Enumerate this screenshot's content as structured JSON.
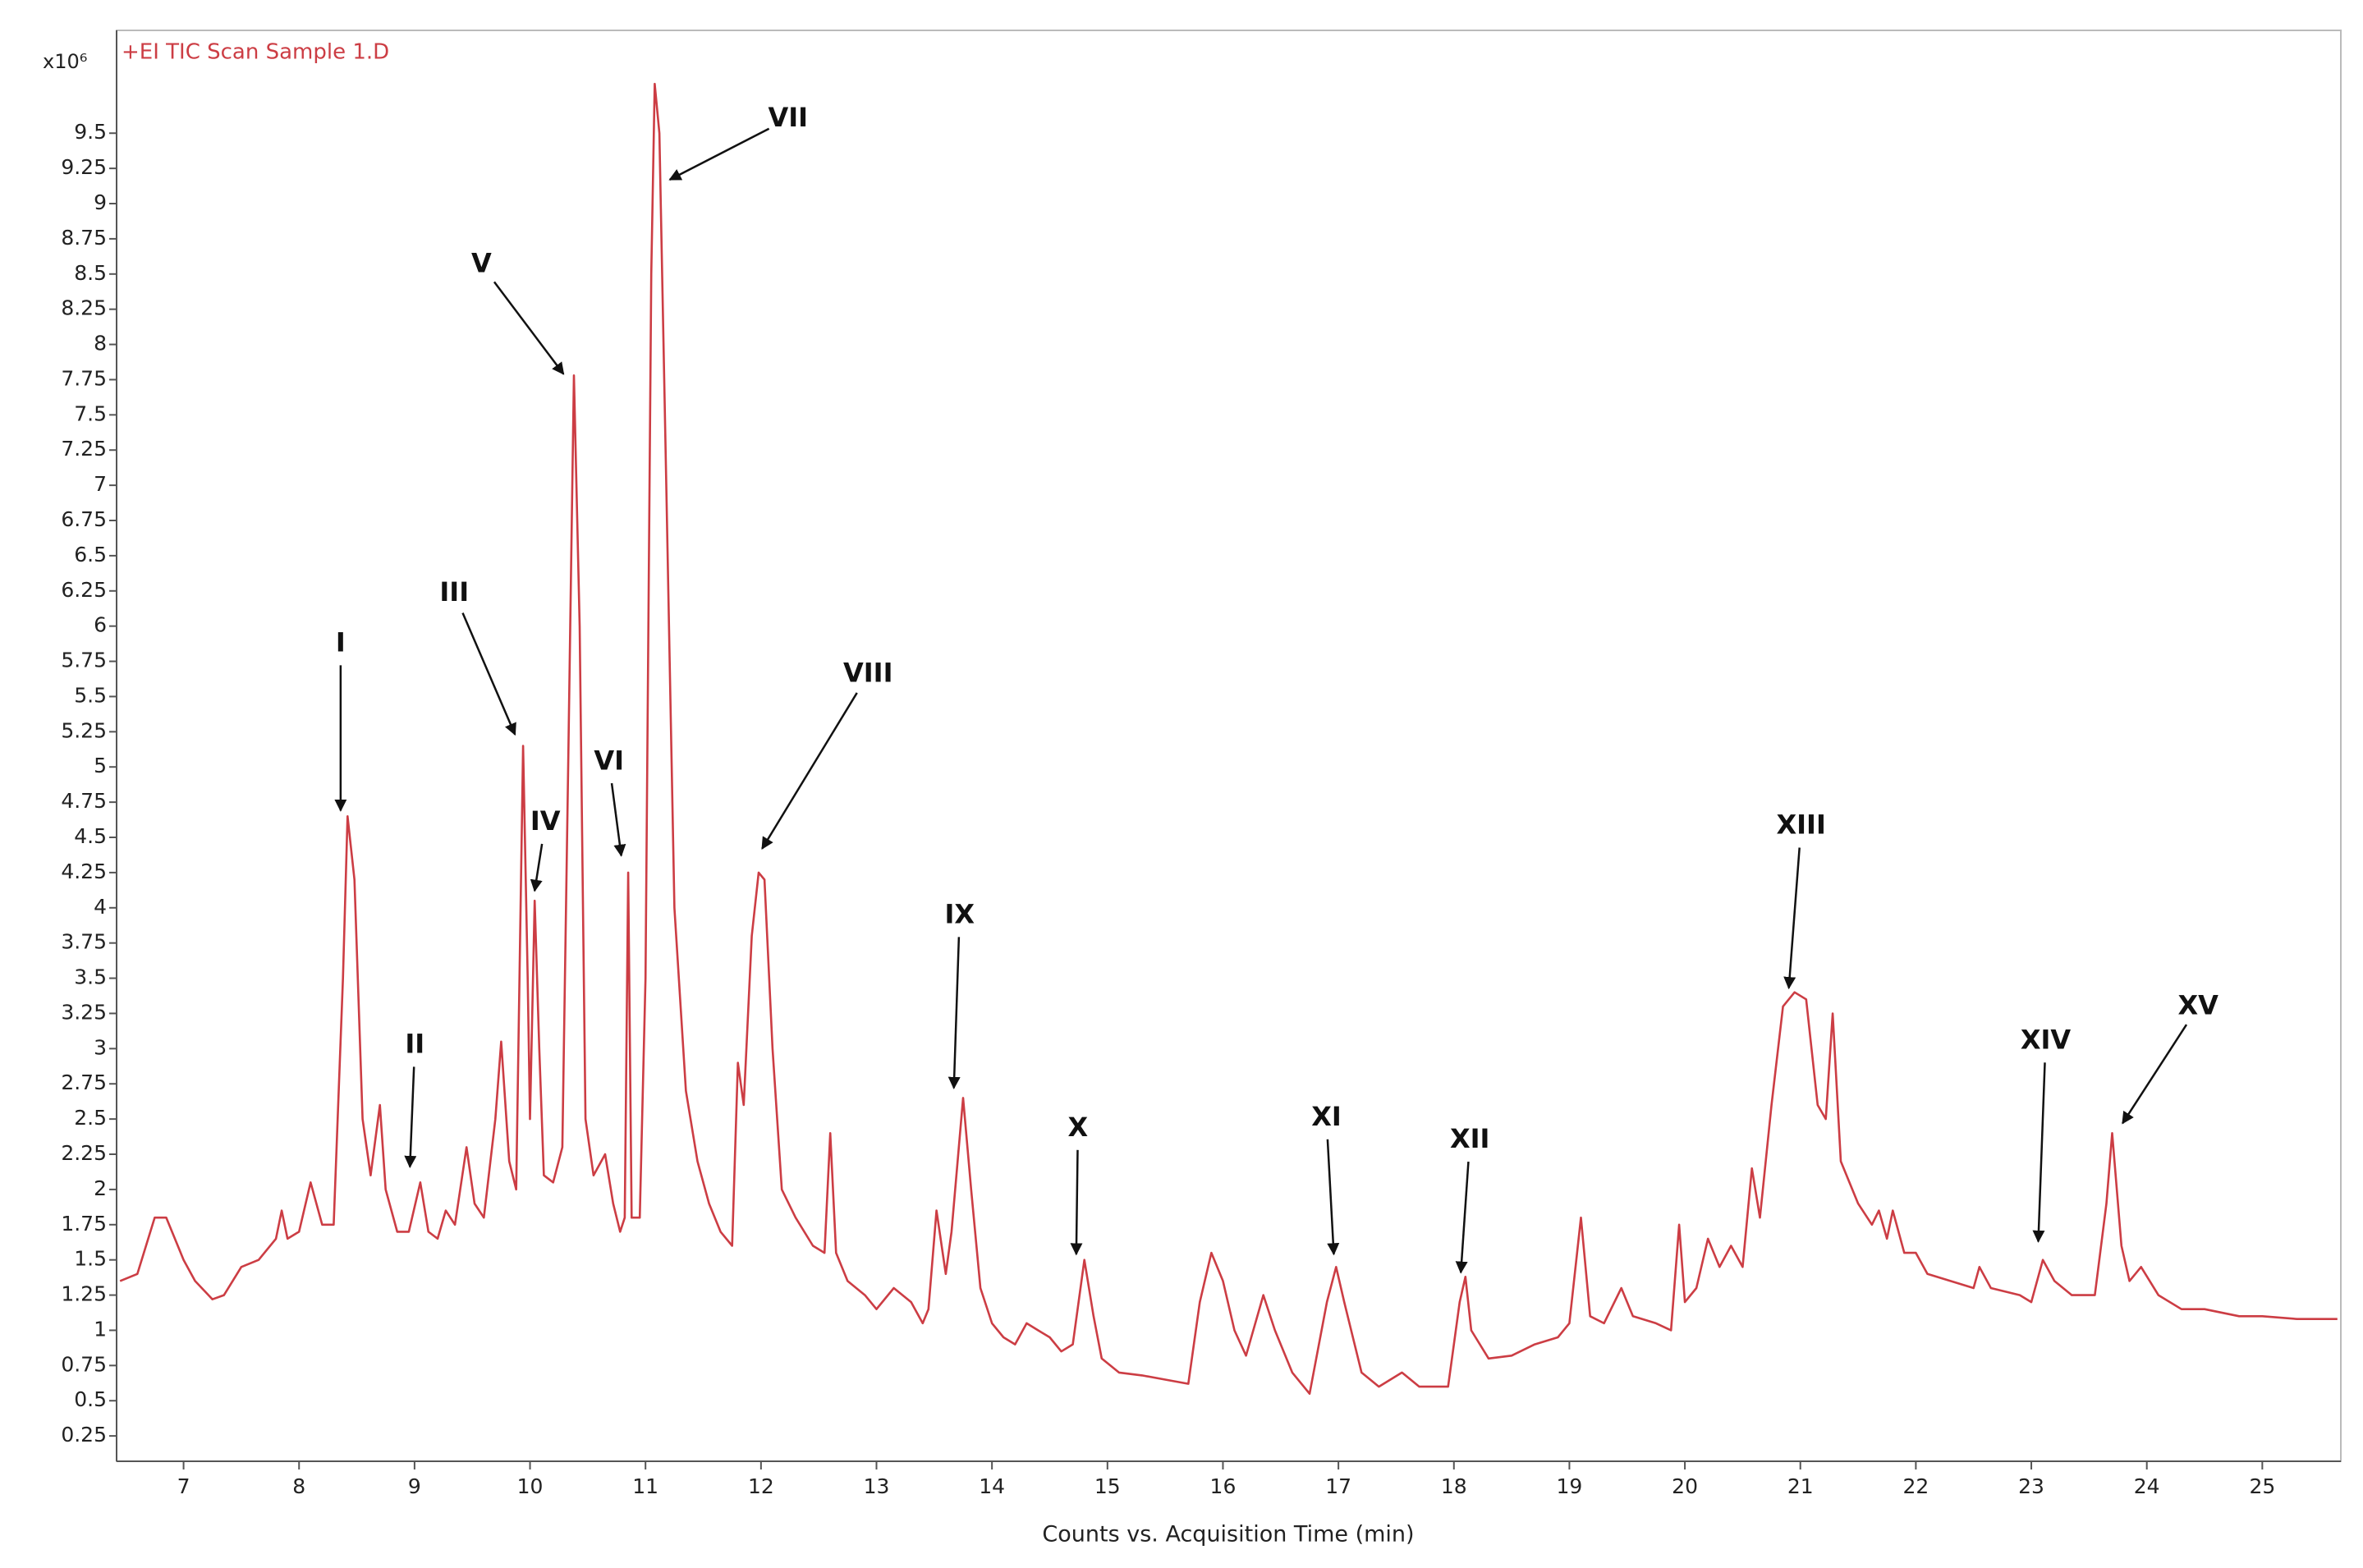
{
  "chart_data": {
    "type": "line",
    "title": "+EI TIC Scan Sample 1.D",
    "y_multiplier": "x10⁶",
    "x_label": "Counts vs. Acquisition Time (min)",
    "xlim": [
      6.42,
      25.68
    ],
    "ylim": [
      0.07,
      10.23
    ],
    "xticks": [
      7,
      8,
      9,
      10,
      11,
      12,
      13,
      14,
      15,
      16,
      17,
      18,
      19,
      20,
      21,
      22,
      23,
      24,
      25
    ],
    "yticks": [
      0.25,
      0.5,
      0.75,
      1,
      1.25,
      1.5,
      1.75,
      2,
      2.25,
      2.5,
      2.75,
      3,
      3.25,
      3.5,
      3.75,
      4,
      4.25,
      4.5,
      4.75,
      5,
      5.25,
      5.5,
      5.75,
      6,
      6.25,
      6.5,
      6.75,
      7,
      7.25,
      7.5,
      7.75,
      8,
      8.25,
      8.5,
      8.75,
      9,
      9.25,
      9.5
    ],
    "series": [
      {
        "color": "#cc3d44",
        "x": [
          6.45,
          6.6,
          6.75,
          6.85,
          7.0,
          7.1,
          7.25,
          7.35,
          7.5,
          7.65,
          7.8,
          7.85,
          7.9,
          8.0,
          8.1,
          8.2,
          8.3,
          8.38,
          8.42,
          8.48,
          8.55,
          8.62,
          8.7,
          8.75,
          8.85,
          8.95,
          9.05,
          9.12,
          9.2,
          9.27,
          9.35,
          9.45,
          9.52,
          9.6,
          9.7,
          9.75,
          9.82,
          9.88,
          9.94,
          9.98,
          10.0,
          10.04,
          10.08,
          10.12,
          10.2,
          10.28,
          10.33,
          10.38,
          10.43,
          10.48,
          10.55,
          10.65,
          10.72,
          10.78,
          10.82,
          10.85,
          10.88,
          10.95,
          11.0,
          11.05,
          11.08,
          11.12,
          11.18,
          11.25,
          11.35,
          11.45,
          11.55,
          11.65,
          11.75,
          11.8,
          11.85,
          11.92,
          11.98,
          12.03,
          12.1,
          12.18,
          12.3,
          12.45,
          12.55,
          12.6,
          12.65,
          12.75,
          12.9,
          13.0,
          13.15,
          13.3,
          13.4,
          13.45,
          13.52,
          13.6,
          13.65,
          13.75,
          13.82,
          13.9,
          14.0,
          14.1,
          14.2,
          14.3,
          14.4,
          14.5,
          14.6,
          14.7,
          14.8,
          14.88,
          14.95,
          15.1,
          15.3,
          15.5,
          15.7,
          15.8,
          15.9,
          16.0,
          16.1,
          16.2,
          16.35,
          16.45,
          16.6,
          16.75,
          16.9,
          16.98,
          17.05,
          17.2,
          17.35,
          17.55,
          17.7,
          17.95,
          18.05,
          18.1,
          18.15,
          18.3,
          18.5,
          18.7,
          18.9,
          19.0,
          19.1,
          19.18,
          19.3,
          19.45,
          19.55,
          19.75,
          19.88,
          19.95,
          20.0,
          20.1,
          20.2,
          20.3,
          20.4,
          20.5,
          20.58,
          20.65,
          20.75,
          20.85,
          20.95,
          21.05,
          21.15,
          21.22,
          21.28,
          21.35,
          21.5,
          21.62,
          21.68,
          21.75,
          21.8,
          21.9,
          22.0,
          22.1,
          22.3,
          22.5,
          22.55,
          22.65,
          22.9,
          23.0,
          23.1,
          23.2,
          23.35,
          23.55,
          23.65,
          23.7,
          23.78,
          23.85,
          23.95,
          24.1,
          24.3,
          24.5,
          24.8,
          25.0,
          25.3,
          25.65
        ],
        "values": [
          1.35,
          1.4,
          1.8,
          1.8,
          1.5,
          1.35,
          1.22,
          1.25,
          1.45,
          1.5,
          1.65,
          1.85,
          1.65,
          1.7,
          2.05,
          1.75,
          1.75,
          3.5,
          4.65,
          4.2,
          2.5,
          2.1,
          2.6,
          2.0,
          1.7,
          1.7,
          2.05,
          1.7,
          1.65,
          1.85,
          1.75,
          2.3,
          1.9,
          1.8,
          2.5,
          3.05,
          2.2,
          2.0,
          5.15,
          3.5,
          2.5,
          4.05,
          3.0,
          2.1,
          2.05,
          2.3,
          5.0,
          7.78,
          6.0,
          2.5,
          2.1,
          2.25,
          1.9,
          1.7,
          1.8,
          4.25,
          1.8,
          1.8,
          3.5,
          8.5,
          9.85,
          9.5,
          7.0,
          4.0,
          2.7,
          2.2,
          1.9,
          1.7,
          1.6,
          2.9,
          2.6,
          3.8,
          4.25,
          4.2,
          3.0,
          2.0,
          1.8,
          1.6,
          1.55,
          2.4,
          1.55,
          1.35,
          1.25,
          1.15,
          1.3,
          1.2,
          1.05,
          1.15,
          1.85,
          1.4,
          1.7,
          2.65,
          2.0,
          1.3,
          1.05,
          0.95,
          0.9,
          1.05,
          1.0,
          0.95,
          0.85,
          0.9,
          1.5,
          1.1,
          0.8,
          0.7,
          0.68,
          0.65,
          0.62,
          1.2,
          1.55,
          1.35,
          1.0,
          0.82,
          1.25,
          1.0,
          0.7,
          0.55,
          1.2,
          1.45,
          1.2,
          0.7,
          0.6,
          0.7,
          0.6,
          0.6,
          1.2,
          1.38,
          1.0,
          0.8,
          0.82,
          0.9,
          0.95,
          1.05,
          1.8,
          1.1,
          1.05,
          1.3,
          1.1,
          1.05,
          1.0,
          1.75,
          1.2,
          1.3,
          1.65,
          1.45,
          1.6,
          1.45,
          2.15,
          1.8,
          2.6,
          3.3,
          3.4,
          3.35,
          2.6,
          2.5,
          3.25,
          2.2,
          1.9,
          1.75,
          1.85,
          1.65,
          1.85,
          1.55,
          1.55,
          1.4,
          1.35,
          1.3,
          1.45,
          1.3,
          1.25,
          1.2,
          1.5,
          1.35,
          1.25,
          1.25,
          1.9,
          2.4,
          1.6,
          1.35,
          1.45,
          1.25,
          1.15,
          1.15,
          1.1,
          1.1,
          1.08,
          1.08
        ]
      }
    ],
    "annotations": [
      {
        "text": "I",
        "x": 8.36,
        "y": 4.69
      },
      {
        "text": "II",
        "x": 8.96,
        "y": 2.16
      },
      {
        "text": "III",
        "x": 9.87,
        "y": 5.23
      },
      {
        "text": "IV",
        "x": 10.04,
        "y": 4.12
      },
      {
        "text": "V",
        "x": 10.29,
        "y": 7.79
      },
      {
        "text": "VI",
        "x": 10.79,
        "y": 4.37
      },
      {
        "text": "VII",
        "x": 11.21,
        "y": 9.17
      },
      {
        "text": "VIII",
        "x": 12.01,
        "y": 4.42
      },
      {
        "text": "IX",
        "x": 13.67,
        "y": 2.72
      },
      {
        "text": "X",
        "x": 14.73,
        "y": 1.54
      },
      {
        "text": "XI",
        "x": 16.96,
        "y": 1.54
      },
      {
        "text": "XII",
        "x": 18.06,
        "y": 1.41
      },
      {
        "text": "XIII",
        "x": 20.9,
        "y": 3.43
      },
      {
        "text": "XIV",
        "x": 23.06,
        "y": 1.63
      },
      {
        "text": "XV",
        "x": 23.79,
        "y": 2.47
      }
    ]
  }
}
